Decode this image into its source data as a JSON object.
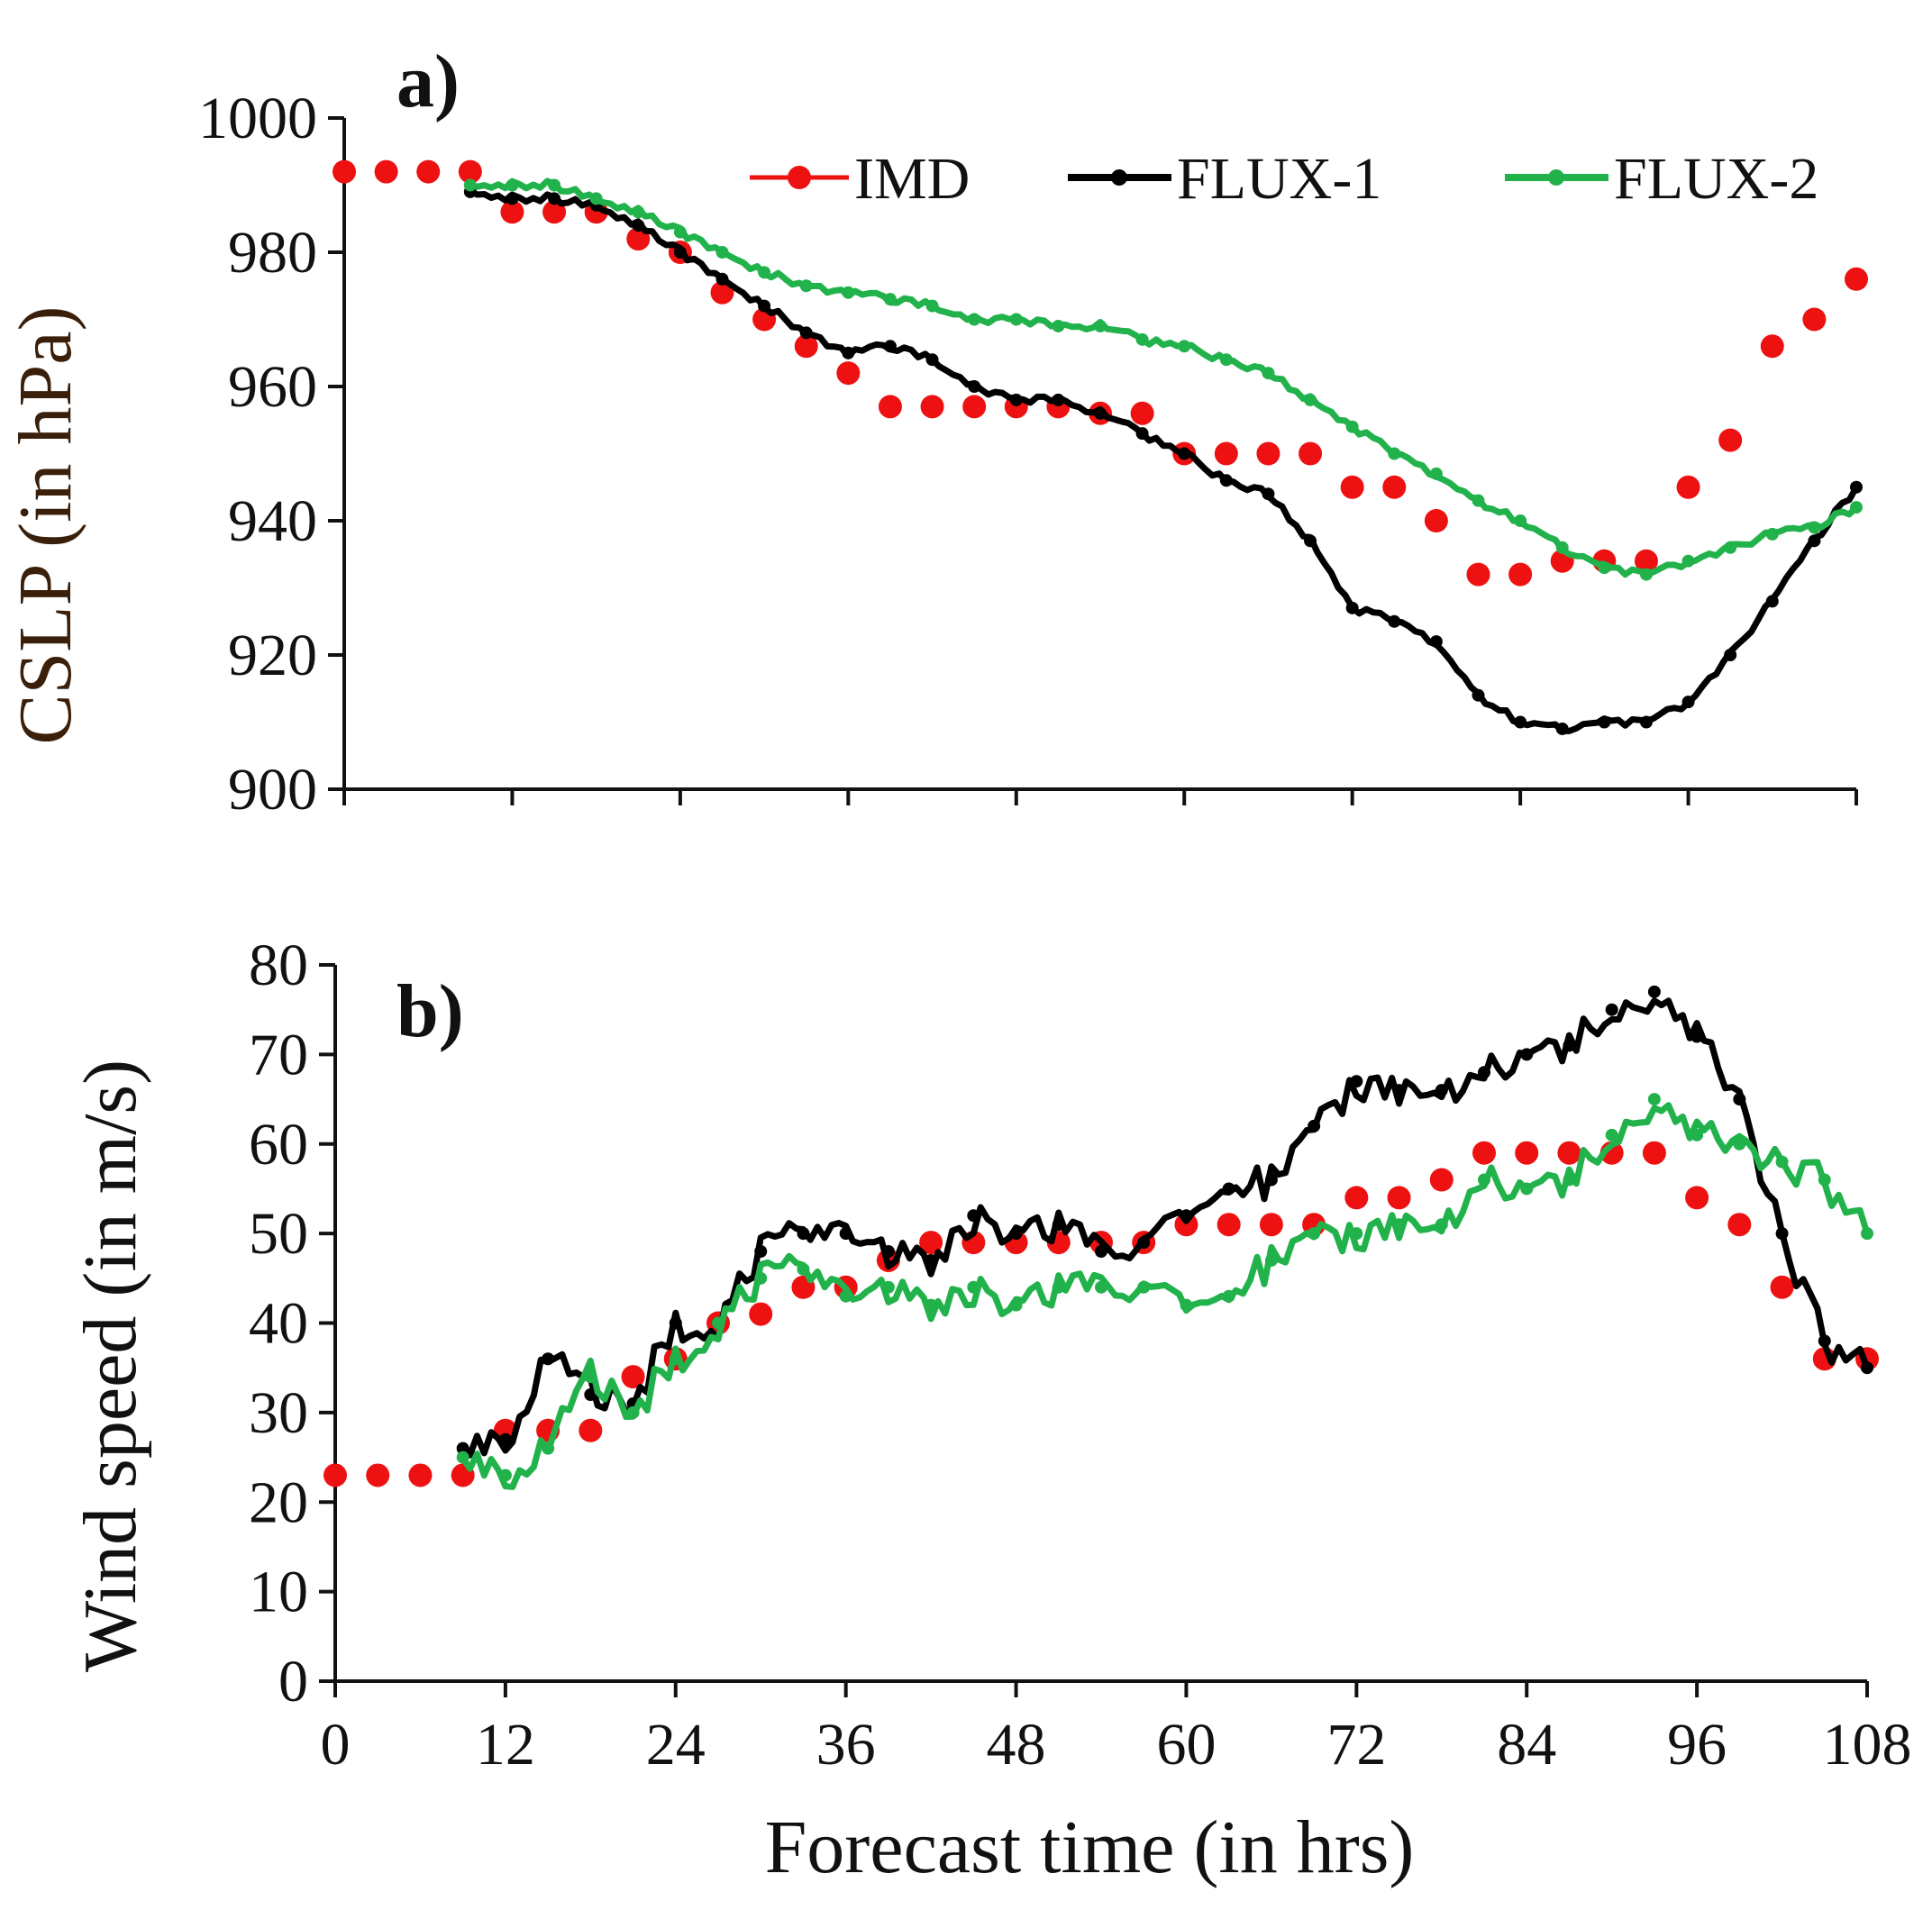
{
  "colors": {
    "IMD": "#ee1111",
    "FLUX-1": "#000000",
    "FLUX-2": "#22b24c",
    "axis": "#111111"
  },
  "legend": [
    "IMD",
    "FLUX-1",
    "FLUX-2"
  ],
  "xlabel": "Forecast time (in hrs)",
  "chart_data": [
    {
      "panel": "a)",
      "type": "line",
      "ylabel": "CSLP (in hPa)",
      "xlim": [
        0,
        108
      ],
      "ylim": [
        900,
        1000
      ],
      "xticks": [
        0,
        12,
        24,
        36,
        48,
        60,
        72,
        84,
        96,
        108
      ],
      "yticks": [
        900,
        920,
        940,
        960,
        980,
        1000
      ],
      "legend_position": "top-right",
      "series": [
        {
          "name": "IMD",
          "style": "dots",
          "x": [
            0,
            3,
            6,
            9,
            12,
            15,
            18,
            21,
            24,
            27,
            30,
            33,
            36,
            39,
            42,
            45,
            48,
            51,
            54,
            57,
            60,
            63,
            66,
            69,
            72,
            75,
            78,
            81,
            84,
            87,
            90,
            93,
            96,
            99,
            102,
            105,
            108
          ],
          "y": [
            992,
            992,
            992,
            992,
            986,
            986,
            986,
            982,
            980,
            974,
            970,
            966,
            962,
            957,
            957,
            957,
            957,
            957,
            956,
            956,
            950,
            950,
            950,
            950,
            945,
            945,
            940,
            932,
            932,
            934,
            934,
            934,
            945,
            952,
            966,
            970,
            976
          ]
        },
        {
          "name": "FLUX-1",
          "style": "line-markers",
          "x": [
            9,
            12,
            15,
            18,
            21,
            24,
            27,
            30,
            33,
            36,
            39,
            42,
            45,
            48,
            51,
            54,
            57,
            60,
            63,
            66,
            69,
            72,
            75,
            78,
            81,
            84,
            87,
            90,
            93,
            96,
            99,
            102,
            105,
            108
          ],
          "y": [
            989,
            988,
            988,
            987,
            984,
            980,
            976,
            972,
            968,
            965,
            966,
            964,
            960,
            958,
            958,
            956,
            953,
            950,
            946,
            944,
            937,
            927,
            925,
            922,
            914,
            910,
            909,
            910,
            910,
            913,
            920,
            928,
            937,
            945
          ]
        },
        {
          "name": "FLUX-2",
          "style": "line-markers",
          "x": [
            9,
            12,
            15,
            18,
            21,
            24,
            27,
            30,
            33,
            36,
            39,
            42,
            45,
            48,
            51,
            54,
            57,
            60,
            63,
            66,
            69,
            72,
            75,
            78,
            81,
            84,
            87,
            90,
            93,
            96,
            99,
            102,
            105,
            108
          ],
          "y": [
            990,
            990,
            990,
            988,
            986,
            983,
            980,
            977,
            975,
            974,
            973,
            972,
            970,
            970,
            969,
            969,
            967,
            966,
            964,
            962,
            958,
            954,
            950,
            947,
            943,
            940,
            936,
            933,
            932,
            934,
            936,
            938,
            939,
            942
          ]
        }
      ]
    },
    {
      "panel": "b)",
      "type": "line",
      "ylabel": "Wind speed (in m/s)",
      "xlim": [
        0,
        108
      ],
      "ylim": [
        0,
        80
      ],
      "xticks": [
        0,
        12,
        24,
        36,
        48,
        60,
        72,
        84,
        96,
        108
      ],
      "yticks": [
        0,
        10,
        20,
        30,
        40,
        50,
        60,
        70,
        80
      ],
      "series": [
        {
          "name": "IMD",
          "style": "dots",
          "x": [
            0,
            3,
            6,
            9,
            12,
            15,
            18,
            21,
            24,
            27,
            30,
            33,
            36,
            39,
            42,
            45,
            48,
            51,
            54,
            57,
            60,
            63,
            66,
            69,
            72,
            75,
            78,
            81,
            84,
            87,
            90,
            93,
            96,
            99,
            102,
            105,
            108
          ],
          "y": [
            23,
            23,
            23,
            23,
            28,
            28,
            28,
            34,
            36,
            40,
            41,
            44,
            44,
            47,
            49,
            49,
            49,
            49,
            49,
            49,
            51,
            51,
            51,
            51,
            54,
            54,
            56,
            59,
            59,
            59,
            59,
            59,
            54,
            51,
            44,
            36,
            36
          ]
        },
        {
          "name": "FLUX-1",
          "style": "line-markers",
          "x": [
            9,
            12,
            15,
            18,
            21,
            24,
            27,
            30,
            33,
            36,
            39,
            42,
            45,
            48,
            51,
            54,
            57,
            60,
            63,
            66,
            69,
            72,
            75,
            78,
            81,
            84,
            87,
            90,
            93,
            96,
            99,
            102,
            105,
            108
          ],
          "y": [
            26,
            27,
            36,
            32,
            31,
            40,
            40,
            48,
            50,
            50,
            48,
            47,
            52,
            50,
            51,
            48,
            49,
            52,
            55,
            56,
            62,
            67,
            66,
            66,
            68,
            70,
            71,
            75,
            77,
            72,
            65,
            50,
            38,
            35
          ]
        },
        {
          "name": "FLUX-2",
          "style": "line-markers",
          "x": [
            9,
            12,
            15,
            18,
            21,
            24,
            27,
            30,
            33,
            36,
            39,
            42,
            45,
            48,
            51,
            54,
            57,
            60,
            63,
            66,
            69,
            72,
            75,
            78,
            81,
            84,
            87,
            90,
            93,
            96,
            99,
            102,
            105,
            108
          ],
          "y": [
            25,
            23,
            26,
            34,
            30,
            36,
            40,
            45,
            46,
            43,
            44,
            42,
            44,
            42,
            44,
            44,
            44,
            42,
            43,
            47,
            50,
            50,
            51,
            51,
            56,
            55,
            56,
            61,
            65,
            61,
            60,
            58,
            56,
            50
          ]
        }
      ]
    }
  ]
}
